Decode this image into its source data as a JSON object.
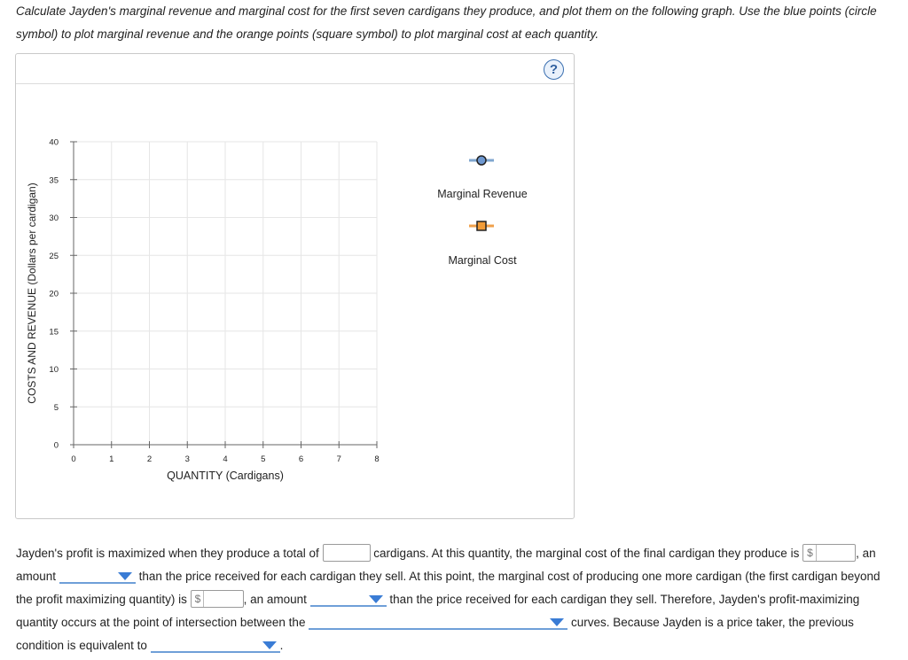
{
  "instructions": "Calculate Jayden's marginal revenue and marginal cost for the first seven cardigans they produce, and plot them on the following graph. Use the blue points (circle symbol) to plot marginal revenue and the orange points (square symbol) to plot marginal cost at each quantity.",
  "help_label": "?",
  "colors": {
    "mr_line": "#7fa6cf",
    "mr_point": "#6e98d0",
    "mc_line": "#f0a04b",
    "mc_point": "#f29c38",
    "grid": "#e6e6e6",
    "axis": "#666666",
    "dropdown_accent": "#3a7cd5"
  },
  "chart_data": {
    "type": "scatter",
    "xlabel": "QUANTITY (Cardigans)",
    "ylabel": "COSTS AND REVENUE (Dollars per cardigan)",
    "xlim": [
      0,
      8
    ],
    "ylim": [
      0,
      40
    ],
    "x_ticks": [
      "0",
      "1",
      "2",
      "3",
      "4",
      "5",
      "6",
      "7",
      "8"
    ],
    "y_ticks": [
      "0",
      "5",
      "10",
      "15",
      "20",
      "25",
      "30",
      "35",
      "40"
    ],
    "grid": true,
    "legend_position": "right",
    "series": [
      {
        "name": "Marginal Revenue",
        "marker": "circle",
        "points": []
      },
      {
        "name": "Marginal Cost",
        "marker": "square",
        "points": []
      }
    ]
  },
  "answer": {
    "s1": "Jayden's profit is maximized when they produce a total of",
    "s2": "cardigans. At this quantity, the marginal cost of the final cardigan they produce is",
    "dollar_sign": "$",
    "s3": ", an amount",
    "s4": "than the price received for each cardigan they sell. At this point, the marginal cost of producing one more cardigan (the first cardigan beyond the profit maximizing quantity) is",
    "s5": ", an amount",
    "s6": "than the price received for each cardigan they sell. Therefore, Jayden's profit-maximizing quantity occurs at the point of intersection between the",
    "s7": "curves. Because Jayden is a price taker, the previous condition is equivalent to",
    "s8": "."
  }
}
